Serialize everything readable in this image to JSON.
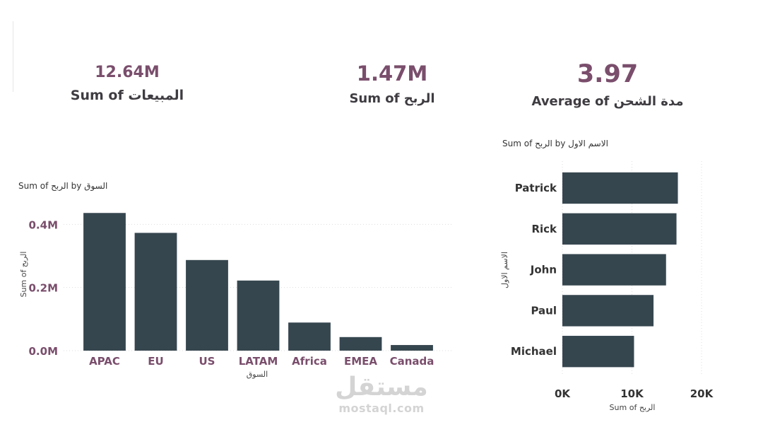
{
  "kpis": [
    {
      "value": "12.64M",
      "label": "Sum of المبيعات"
    },
    {
      "value": "1.47M",
      "label": "Sum of الربح"
    },
    {
      "value": "3.97",
      "label": "Average of مدة الشحن"
    }
  ],
  "colors": {
    "bar": "#36464f",
    "accent": "#7a4e6c",
    "grid": "#dddddd"
  },
  "watermark": {
    "logo_text": "مستقل",
    "domain": "mostaql.com"
  },
  "chart_data": [
    {
      "type": "bar",
      "title": "Sum of الربح by السوق",
      "xlabel": "السوق",
      "ylabel": "Sum of الربح",
      "categories": [
        "APAC",
        "EU",
        "US",
        "LATAM",
        "Africa",
        "EMEA",
        "Canada"
      ],
      "values": [
        436000,
        373000,
        287000,
        222000,
        89000,
        43000,
        17800
      ],
      "yticks": [
        {
          "v": 0,
          "label": "0.0M"
        },
        {
          "v": 200000,
          "label": "0.2M"
        },
        {
          "v": 400000,
          "label": "0.4M"
        }
      ],
      "ylim": [
        0,
        450000
      ],
      "grid": true
    },
    {
      "type": "bar",
      "orientation": "horizontal",
      "title": "Sum of الربح by الاسم الاول",
      "xlabel": "Sum of الربح",
      "ylabel": "الاسم الاول",
      "categories": [
        "Patrick",
        "Rick",
        "John",
        "Paul",
        "Michael"
      ],
      "values": [
        16600,
        16400,
        14900,
        13100,
        10300
      ],
      "xticks": [
        {
          "v": 0,
          "label": "0K"
        },
        {
          "v": 10000,
          "label": "10K"
        },
        {
          "v": 20000,
          "label": "20K"
        }
      ],
      "xlim": [
        0,
        20000
      ],
      "grid": true
    }
  ]
}
